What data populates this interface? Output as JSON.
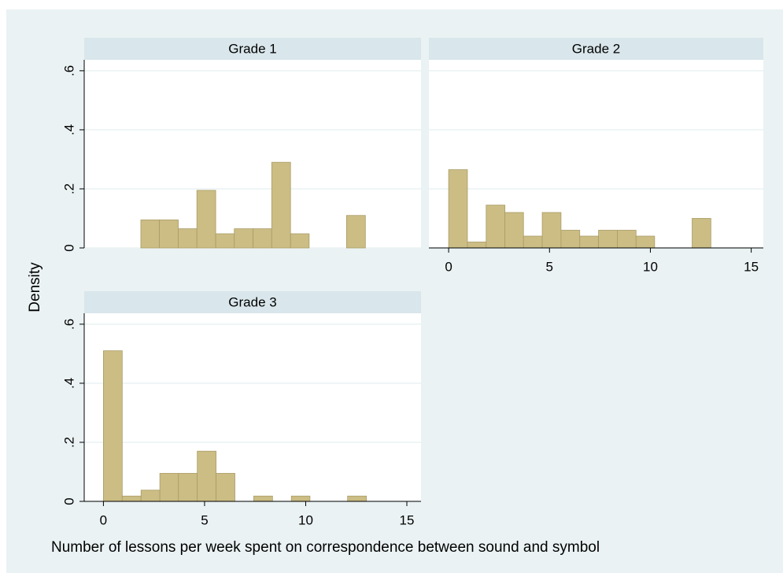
{
  "ylabel": "Density",
  "xlabel": "Number of lessons per week spent on correspondence between sound and symbol",
  "chart_data": [
    {
      "type": "histogram",
      "title": "Grade 1",
      "color": "#cbbd84",
      "grid": true,
      "bins": [
        1.85,
        2.77,
        3.7,
        4.62,
        5.55,
        6.47,
        7.4,
        8.32,
        9.25,
        10.17,
        11.1,
        12.02,
        12.95
      ],
      "values": [
        0.095,
        0.095,
        0.065,
        0.195,
        0.048,
        0.065,
        0.065,
        0.29,
        0.048,
        0,
        0,
        0.11
      ],
      "xlim": [
        -0.95,
        15.7
      ],
      "ylim": [
        0,
        0.637
      ],
      "yticks": [
        0,
        {
          "value": 0.2,
          "label": ".2"
        },
        {
          "value": 0.4,
          "label": ".4"
        },
        {
          "value": 0.6,
          "label": ".6"
        }
      ]
    },
    {
      "type": "histogram",
      "title": "Grade 2",
      "color": "#cbbd84",
      "grid": true,
      "ytick_labels": false,
      "bins": [
        0,
        0.93,
        1.86,
        2.79,
        3.71,
        4.64,
        5.57,
        6.5,
        7.43,
        8.36,
        9.29,
        10.21,
        11.14,
        12.07,
        13
      ],
      "values": [
        0.265,
        0.02,
        0.145,
        0.12,
        0.04,
        0.12,
        0.06,
        0.04,
        0.06,
        0.06,
        0.04,
        0,
        0,
        0.1
      ],
      "xlim": [
        -0.98,
        15.6
      ],
      "ylim": [
        0,
        0.637
      ],
      "xticks": [
        0,
        5,
        10,
        15
      ],
      "yticks": [
        0,
        0.2,
        0.4,
        0.6
      ]
    },
    {
      "type": "histogram",
      "title": "Grade 3",
      "color": "#cbbd84",
      "grid": true,
      "bins": [
        0,
        0.93,
        1.86,
        2.79,
        3.71,
        4.64,
        5.57,
        6.5,
        7.43,
        8.36,
        9.29,
        10.21,
        11.14,
        12.07,
        13
      ],
      "values": [
        0.51,
        0.018,
        0.038,
        0.095,
        0.095,
        0.17,
        0.095,
        0,
        0.018,
        0,
        0.018,
        0,
        0,
        0.018
      ],
      "xlim": [
        -0.95,
        15.7
      ],
      "ylim": [
        0,
        0.637
      ],
      "xticks": [
        0,
        5,
        10,
        15
      ],
      "yticks": [
        0,
        {
          "value": 0.2,
          "label": ".2"
        },
        {
          "value": 0.4,
          "label": ".4"
        },
        {
          "value": 0.6,
          "label": ".6"
        }
      ]
    }
  ]
}
